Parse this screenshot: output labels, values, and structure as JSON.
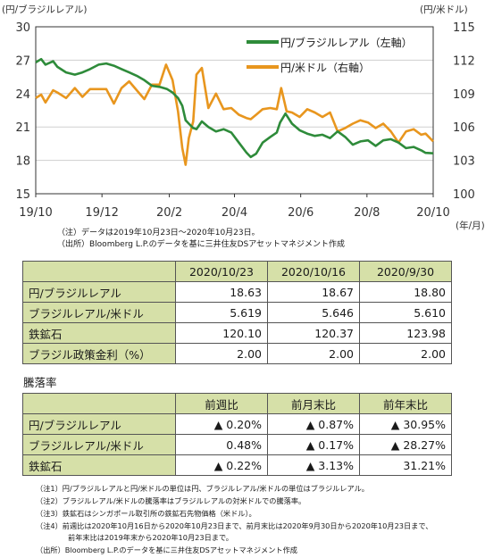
{
  "chart_data": {
    "type": "line",
    "left_unit": "(円/ブラジルレアル)",
    "right_unit": "(円/米ドル)",
    "x_unit": "(年/月)",
    "x_ticks": [
      "19/10",
      "19/12",
      "20/2",
      "20/4",
      "20/6",
      "20/8",
      "20/10"
    ],
    "left_ticks": [
      "30",
      "27",
      "24",
      "21",
      "18",
      "15"
    ],
    "right_ticks": [
      "115",
      "112",
      "109",
      "106",
      "103",
      "100"
    ],
    "left_ylim": [
      15,
      30
    ],
    "right_ylim": [
      100,
      115
    ],
    "grid": "horizontal",
    "legend_placement": "top-right",
    "series": [
      {
        "name": "円/ブラジルレアル（左軸）",
        "axis": "left",
        "color": "#2e8b3a",
        "x": [
          "2019-10-23",
          "2019-10-28",
          "2019-11-01",
          "2019-11-08",
          "2019-11-12",
          "2019-11-20",
          "2019-11-28",
          "2019-12-05",
          "2019-12-12",
          "2019-12-20",
          "2019-12-27",
          "2020-01-03",
          "2020-01-10",
          "2020-01-17",
          "2020-01-24",
          "2020-01-31",
          "2020-02-07",
          "2020-02-14",
          "2020-02-21",
          "2020-02-26",
          "2020-03-02",
          "2020-03-06",
          "2020-03-09",
          "2020-03-12",
          "2020-03-16",
          "2020-03-19",
          "2020-03-24",
          "2020-03-30",
          "2020-04-06",
          "2020-04-13",
          "2020-04-20",
          "2020-04-27",
          "2020-05-04",
          "2020-05-08",
          "2020-05-13",
          "2020-05-19",
          "2020-05-26",
          "2020-06-01",
          "2020-06-04",
          "2020-06-09",
          "2020-06-15",
          "2020-06-22",
          "2020-06-29",
          "2020-07-06",
          "2020-07-13",
          "2020-07-20",
          "2020-07-27",
          "2020-08-03",
          "2020-08-10",
          "2020-08-17",
          "2020-08-24",
          "2020-08-31",
          "2020-09-07",
          "2020-09-14",
          "2020-09-21",
          "2020-09-28",
          "2020-10-05",
          "2020-10-12",
          "2020-10-16",
          "2020-10-23"
        ],
        "values": [
          26.8,
          27.1,
          26.6,
          26.9,
          26.4,
          25.9,
          25.7,
          25.9,
          26.2,
          26.6,
          26.7,
          26.5,
          26.2,
          25.9,
          25.6,
          25.2,
          24.7,
          24.6,
          24.4,
          24.1,
          23.6,
          22.9,
          21.6,
          21.3,
          20.9,
          20.8,
          21.5,
          21.0,
          20.6,
          20.8,
          20.5,
          19.6,
          18.7,
          18.3,
          18.6,
          19.6,
          20.1,
          20.5,
          21.4,
          22.2,
          21.3,
          20.7,
          20.4,
          20.2,
          20.3,
          20.0,
          20.6,
          20.1,
          19.4,
          19.7,
          19.8,
          19.3,
          19.8,
          19.9,
          19.6,
          19.1,
          19.2,
          18.9,
          18.67,
          18.63
        ]
      },
      {
        "name": "円/米ドル（右軸）",
        "axis": "right",
        "color": "#e8961e",
        "x": [
          "2019-10-23",
          "2019-10-28",
          "2019-11-01",
          "2019-11-08",
          "2019-11-12",
          "2019-11-20",
          "2019-11-28",
          "2019-12-05",
          "2019-12-12",
          "2019-12-20",
          "2019-12-27",
          "2020-01-03",
          "2020-01-10",
          "2020-01-17",
          "2020-01-24",
          "2020-01-31",
          "2020-02-07",
          "2020-02-14",
          "2020-02-20",
          "2020-02-26",
          "2020-03-02",
          "2020-03-06",
          "2020-03-09",
          "2020-03-12",
          "2020-03-16",
          "2020-03-19",
          "2020-03-24",
          "2020-03-30",
          "2020-04-06",
          "2020-04-13",
          "2020-04-20",
          "2020-04-27",
          "2020-05-04",
          "2020-05-08",
          "2020-05-13",
          "2020-05-19",
          "2020-05-26",
          "2020-06-01",
          "2020-06-05",
          "2020-06-10",
          "2020-06-15",
          "2020-06-22",
          "2020-06-29",
          "2020-07-06",
          "2020-07-13",
          "2020-07-20",
          "2020-07-27",
          "2020-08-03",
          "2020-08-10",
          "2020-08-17",
          "2020-08-24",
          "2020-08-31",
          "2020-09-07",
          "2020-09-14",
          "2020-09-21",
          "2020-09-28",
          "2020-10-05",
          "2020-10-12",
          "2020-10-16",
          "2020-10-23"
        ],
        "values": [
          108.6,
          108.9,
          108.2,
          109.3,
          109.1,
          108.6,
          109.5,
          108.7,
          109.4,
          109.4,
          109.4,
          108.1,
          109.5,
          110.1,
          109.3,
          108.5,
          109.8,
          109.8,
          111.6,
          110.2,
          107.4,
          104.1,
          102.6,
          105.0,
          106.5,
          110.7,
          111.3,
          107.7,
          109.0,
          107.6,
          107.7,
          107.1,
          106.8,
          106.7,
          107.1,
          107.6,
          107.7,
          107.6,
          109.5,
          107.4,
          107.3,
          106.9,
          107.6,
          107.3,
          106.9,
          107.3,
          105.6,
          105.9,
          106.3,
          106.6,
          106.4,
          105.9,
          106.3,
          105.6,
          104.6,
          105.6,
          105.8,
          105.3,
          105.4,
          104.7
        ]
      }
    ]
  },
  "chart_note": "（注）データは2019年10月23日～2020年10月23日。",
  "chart_source": "（出所）Bloomberg L.P.のデータを基に三井住友DSアセットマネジメント作成",
  "table1": {
    "headers": [
      "2020/10/23",
      "2020/10/16",
      "2020/9/30"
    ],
    "rows": [
      {
        "label": "円/ブラジルレアル",
        "values": [
          "18.63",
          "18.67",
          "18.80"
        ]
      },
      {
        "label": "ブラジルレアル/米ドル",
        "values": [
          "5.619",
          "5.646",
          "5.610"
        ]
      },
      {
        "label": "鉄鉱石",
        "values": [
          "120.10",
          "120.37",
          "123.98"
        ]
      },
      {
        "label": "ブラジル政策金利（%）",
        "values": [
          "2.00",
          "2.00",
          "2.00"
        ]
      }
    ]
  },
  "section_label": "騰落率",
  "table2": {
    "headers": [
      "前週比",
      "前月末比",
      "前年末比"
    ],
    "rows": [
      {
        "label": "円/ブラジルレアル",
        "values": [
          "▲ 0.20%",
          "▲ 0.87%",
          "▲ 30.95%"
        ]
      },
      {
        "label": "ブラジルレアル/米ドル",
        "values": [
          "0.48%",
          "▲ 0.17%",
          "▲ 28.27%"
        ]
      },
      {
        "label": "鉄鉱石",
        "values": [
          "▲ 0.22%",
          "▲ 3.13%",
          "31.21%"
        ]
      }
    ]
  },
  "footnotes": [
    "（注1）円/ブラジルレアルと円/米ドルの単位は円、ブラジルレアル/米ドルの単位はブラジルレアル。",
    "（注2）ブラジルレアル/米ドルの騰落率はブラジルレアルの対米ドルでの騰落率。",
    "（注3）鉄鉱石はシンガポール取引所の鉄鉱石先物価格（米ドル）。",
    "（注4）前週比は2020年10月16日から2020年10月23日まで、前月末比は2020年9月30日から2020年10月23日まで、",
    "前年末比は2019年末から2020年10月23日まで。",
    "（出所）Bloomberg L.P.のデータを基に三井住友DSアセットマネジメント作成"
  ]
}
